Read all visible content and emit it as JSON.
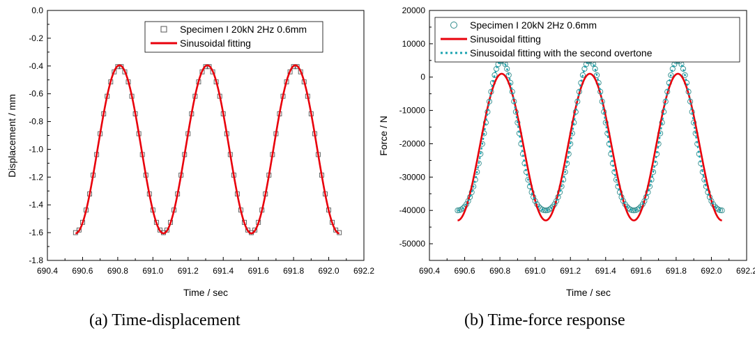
{
  "chart_data": [
    {
      "type": "scatter",
      "caption": "(a) Time-displacement",
      "xlabel": "Time / sec",
      "ylabel": "Displacement / mm",
      "xlim": [
        690.4,
        692.2
      ],
      "ylim": [
        -1.8,
        0.0
      ],
      "xticks": [
        "690.4",
        "690.6",
        "690.8",
        "691.0",
        "691.2",
        "691.4",
        "691.6",
        "691.8",
        "692.0",
        "692.2"
      ],
      "yticks": [
        "0.0",
        "-0.2",
        "-0.4",
        "-0.6",
        "-0.8",
        "-1.0",
        "-1.2",
        "-1.4",
        "-1.6",
        "-1.8"
      ],
      "grid": false,
      "legend_position": "top-right",
      "series": [
        {
          "name": "Specimen I 20kN 2Hz 0.6mm",
          "kind": "marker-square",
          "color": "#555555",
          "x_start": 690.56,
          "x_end": 692.06,
          "x_step": 0.02,
          "mean": -1.0,
          "amplitude": 0.6,
          "frequency": 2,
          "peak_at": 690.81
        },
        {
          "name": "Sinusoidal fitting",
          "kind": "line",
          "color": "#e8000b",
          "x_start": 690.56,
          "x_end": 692.06,
          "mean": -1.0,
          "amplitude": 0.605,
          "frequency": 2,
          "peak_at": 690.81
        }
      ]
    },
    {
      "type": "scatter",
      "caption": "(b) Time-force response",
      "xlabel": "Time / sec",
      "ylabel": "Force / N",
      "xlim": [
        690.4,
        692.2
      ],
      "ylim": [
        -55000,
        20000
      ],
      "xticks": [
        "690.4",
        "690.6",
        "690.8",
        "691.0",
        "691.2",
        "691.4",
        "691.6",
        "691.8",
        "692.0",
        "692.2"
      ],
      "yticks": [
        "20000",
        "10000",
        "0",
        "-10000",
        "-20000",
        "-30000",
        "-40000",
        "-50000"
      ],
      "grid": false,
      "legend_position": "top-right",
      "series": [
        {
          "name": "Specimen I 20kN 2Hz 0.6mm",
          "kind": "marker-circle",
          "color": "#2e8b8b",
          "x_start": 690.56,
          "x_end": 692.06,
          "x_step": 0.01,
          "mean": -21000,
          "amplitude": 22500,
          "second_overtone": 3500,
          "frequency": 2,
          "peak_at": 690.81
        },
        {
          "name": "Sinusoidal fitting",
          "kind": "line",
          "color": "#e8000b",
          "x_start": 690.56,
          "x_end": 692.06,
          "mean": -21000,
          "amplitude": 22000,
          "frequency": 2,
          "peak_at": 690.81
        },
        {
          "name": "Sinusoidal fitting with the second overtone",
          "kind": "dotted",
          "color": "#1aa3b0",
          "x_start": 690.56,
          "x_end": 692.06,
          "mean": -21000,
          "amplitude": 22500,
          "second_overtone": 3500,
          "frequency": 2,
          "peak_at": 690.81
        }
      ]
    }
  ]
}
